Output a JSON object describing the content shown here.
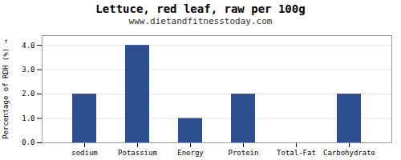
{
  "chart_data": {
    "type": "bar",
    "title": "Lettuce, red leaf, raw per 100g",
    "subtitle": "www.dietandfitnesstoday.com",
    "categories": [
      "sodium",
      "Potassium",
      "Energy",
      "Protein",
      "Total-Fat",
      "Carbohydrate"
    ],
    "values": [
      2.0,
      4.0,
      1.0,
      2.0,
      0.0,
      2.0
    ],
    "color": "#2d4e8f",
    "ylabel": "Percentage of RDH (%)",
    "ylim": [
      0,
      4.4
    ],
    "yticks": [
      {
        "value": 0,
        "label": "0.0"
      },
      {
        "value": 1,
        "label": "1.0"
      },
      {
        "value": 2,
        "label": "2.0"
      },
      {
        "value": 3,
        "label": "3.0"
      },
      {
        "value": 4,
        "label": "4.0"
      }
    ],
    "grid": true
  }
}
